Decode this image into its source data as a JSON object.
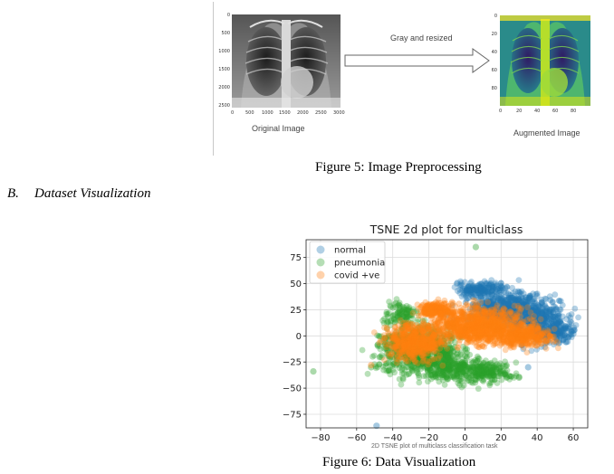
{
  "figure5": {
    "original_label": "Original Image",
    "augmented_label": "Augmented Image",
    "arrow_label": "Gray and resized",
    "caption": "Figure 5: Image Preprocessing",
    "original_yticks": [
      "0",
      "500",
      "1000",
      "1500",
      "2000",
      "2500"
    ],
    "original_xticks": [
      "0",
      "500",
      "1000",
      "1500",
      "2000",
      "2500",
      "3000"
    ],
    "augmented_yticks": [
      "0",
      "20",
      "40",
      "60",
      "80"
    ],
    "augmented_xticks": [
      "0",
      "20",
      "40",
      "60",
      "80"
    ]
  },
  "section": {
    "number": "B.",
    "title": "Dataset Visualization"
  },
  "figure6": {
    "caption": "Figure 6: Data Visualization",
    "subcaption": "2D TSNE plot of multiclass classification task"
  },
  "chart_data": {
    "type": "scatter",
    "title": "TSNE 2d plot for multiclass",
    "xlabel": "",
    "ylabel": "",
    "xlim": [
      -88,
      68
    ],
    "ylim": [
      -88,
      92
    ],
    "xticks": [
      -80,
      -60,
      -40,
      -20,
      0,
      20,
      40,
      60
    ],
    "yticks": [
      75,
      50,
      25,
      0,
      -25,
      -50,
      -75
    ],
    "grid": true,
    "legend_position": "top-left",
    "series": [
      {
        "name": "normal",
        "color": "#1f77b4",
        "clusters": [
          {
            "cx": 22,
            "cy": 28,
            "rx": 20,
            "ry": 15,
            "n": 500
          },
          {
            "cx": 40,
            "cy": 15,
            "rx": 16,
            "ry": 18,
            "n": 350
          },
          {
            "cx": 50,
            "cy": 5,
            "rx": 10,
            "ry": 12,
            "n": 150
          },
          {
            "cx": 8,
            "cy": 45,
            "rx": 12,
            "ry": 6,
            "n": 150
          }
        ],
        "outliers": [
          [
            -49,
            -86
          ],
          [
            35,
            -30
          ],
          [
            60,
            2
          ],
          [
            -10,
            20
          ]
        ]
      },
      {
        "name": "pneumonia",
        "color": "#2ca02c",
        "clusters": [
          {
            "cx": -25,
            "cy": -15,
            "rx": 20,
            "ry": 20,
            "n": 700
          },
          {
            "cx": -5,
            "cy": -30,
            "rx": 16,
            "ry": 14,
            "n": 300
          },
          {
            "cx": 15,
            "cy": -35,
            "rx": 12,
            "ry": 8,
            "n": 150
          },
          {
            "cx": -35,
            "cy": 20,
            "rx": 8,
            "ry": 10,
            "n": 100
          }
        ],
        "outliers": [
          [
            6,
            85
          ],
          [
            -84,
            -34
          ],
          [
            -52,
            -30
          ],
          [
            30,
            -40
          ]
        ]
      },
      {
        "name": "covid +ve",
        "color": "#ff7f0e",
        "clusters": [
          {
            "cx": 8,
            "cy": 10,
            "rx": 24,
            "ry": 15,
            "n": 900
          },
          {
            "cx": -28,
            "cy": -5,
            "rx": 14,
            "ry": 16,
            "n": 500
          },
          {
            "cx": 32,
            "cy": 0,
            "rx": 14,
            "ry": 10,
            "n": 300
          },
          {
            "cx": -15,
            "cy": 25,
            "rx": 10,
            "ry": 6,
            "n": 200
          }
        ],
        "outliers": [
          [
            -52,
            -28
          ],
          [
            45,
            -5
          ]
        ]
      }
    ]
  }
}
